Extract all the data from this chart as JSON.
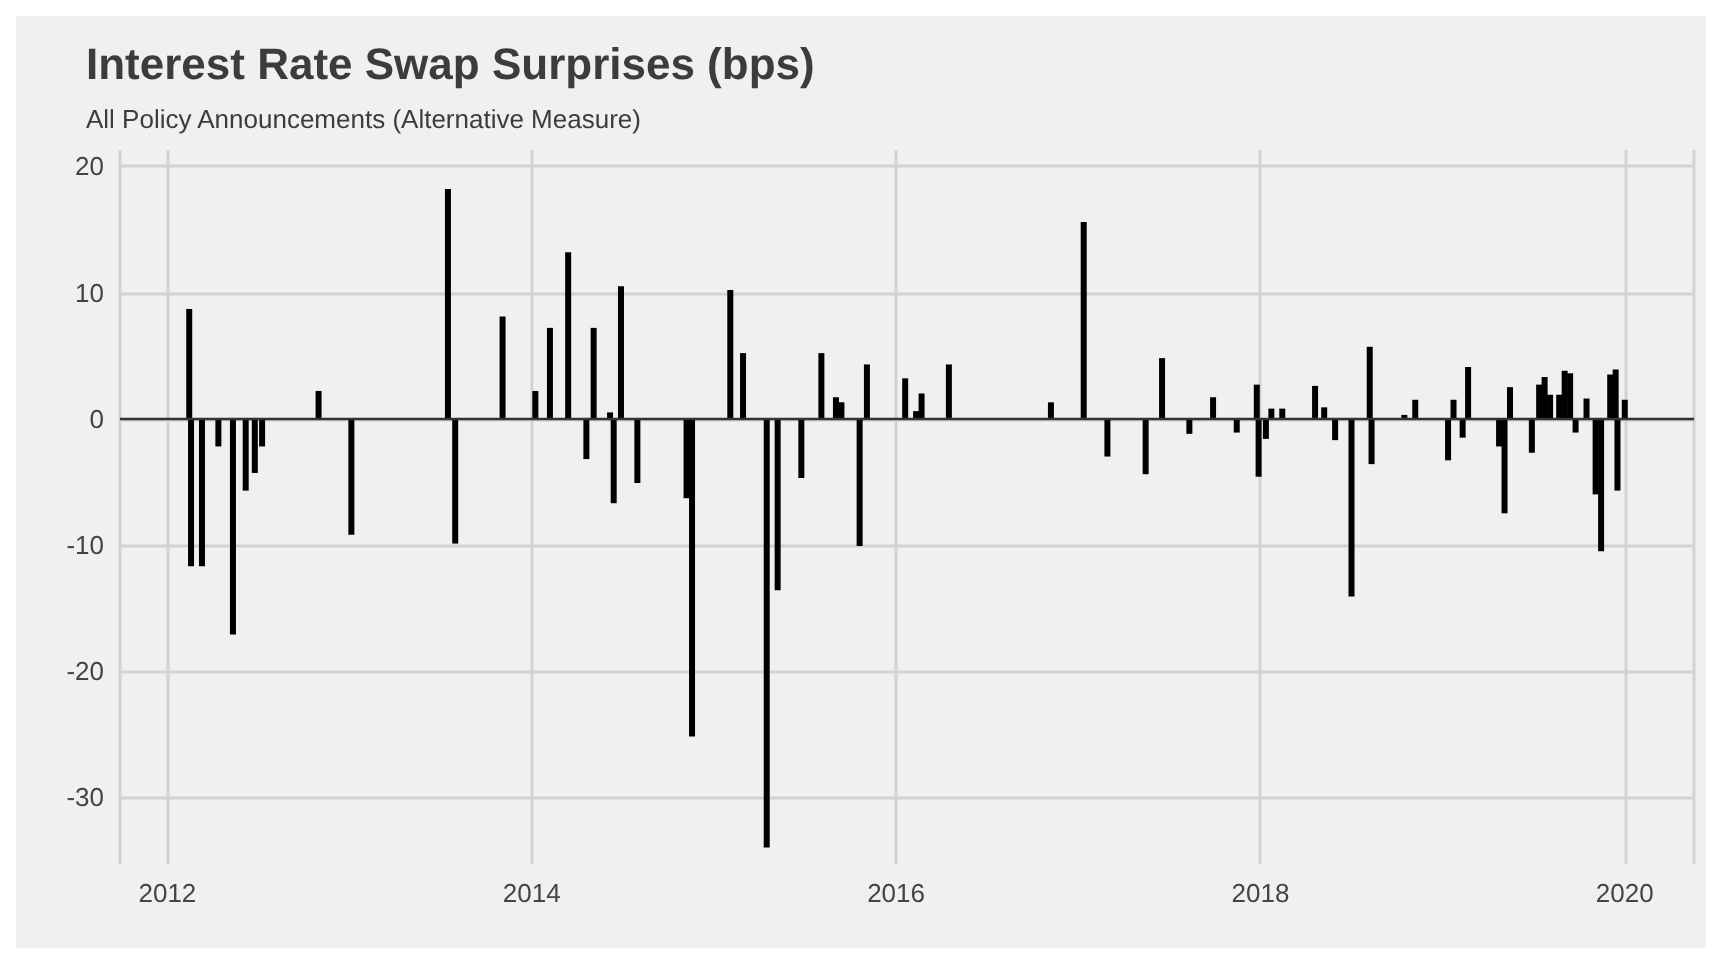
{
  "chart_data": {
    "type": "bar",
    "title": "Interest Rate Swap Surprises (bps)",
    "subtitle": "All Policy Announcements (Alternative Measure)",
    "x": [
      2012.12,
      2012.13,
      2012.19,
      2012.28,
      2012.36,
      2012.43,
      2012.48,
      2012.52,
      2012.83,
      2013.01,
      2013.54,
      2013.58,
      2013.84,
      2014.02,
      2014.1,
      2014.2,
      2014.3,
      2014.34,
      2014.43,
      2014.45,
      2014.49,
      2014.58,
      2014.85,
      2014.88,
      2015.09,
      2015.16,
      2015.29,
      2015.35,
      2015.48,
      2015.59,
      2015.67,
      2015.7,
      2015.8,
      2015.84,
      2016.05,
      2016.11,
      2016.14,
      2016.29,
      2016.85,
      2017.03,
      2017.16,
      2017.37,
      2017.46,
      2017.61,
      2017.74,
      2017.87,
      2017.98,
      2017.99,
      2018.03,
      2018.06,
      2018.12,
      2018.3,
      2018.35,
      2018.41,
      2018.5,
      2018.6,
      2018.61,
      2018.79,
      2018.85,
      2019.03,
      2019.06,
      2019.11,
      2019.14,
      2019.31,
      2019.34,
      2019.37,
      2019.49,
      2019.53,
      2019.56,
      2019.59,
      2019.64,
      2019.67,
      2019.7,
      2019.73,
      2019.79,
      2019.84,
      2019.87,
      2019.92,
      2019.95,
      2019.96,
      2020.0
    ],
    "values": [
      8.7,
      -11.7,
      -11.7,
      -2.2,
      -17.1,
      -5.7,
      -4.3,
      -2.2,
      2.2,
      -9.2,
      18.2,
      -9.9,
      8.1,
      2.2,
      7.2,
      13.2,
      -3.2,
      7.2,
      0.5,
      -6.7,
      10.5,
      -5.1,
      -6.3,
      -25.2,
      10.2,
      5.2,
      -34.0,
      -13.6,
      -4.7,
      5.2,
      1.7,
      1.3,
      -10.1,
      4.3,
      3.2,
      0.6,
      2.0,
      4.3,
      1.3,
      15.6,
      -3.0,
      -4.4,
      4.8,
      -1.2,
      1.7,
      -1.1,
      2.7,
      -4.6,
      -1.6,
      0.8,
      0.8,
      2.6,
      0.9,
      -1.7,
      -14.1,
      5.7,
      -3.6,
      0.3,
      1.5,
      -3.3,
      1.5,
      -1.5,
      4.1,
      -2.2,
      -7.5,
      2.5,
      -2.7,
      2.7,
      3.3,
      1.9,
      1.9,
      3.8,
      3.6,
      -1.1,
      1.6,
      -6.0,
      -10.5,
      3.5,
      3.9,
      -5.7,
      1.5
    ],
    "color": "#000000",
    "xlim": [
      2011.74,
      2020.38
    ],
    "xticks": [
      2012,
      2014,
      2016,
      2018,
      2020
    ],
    "ylim": [
      -35.3,
      21.3
    ],
    "yticks": [
      -30,
      -20,
      -10,
      0,
      10,
      20
    ],
    "ref_lines": [
      {
        "axis": "y",
        "value": 0,
        "color": "#333333"
      }
    ],
    "grid": true
  }
}
